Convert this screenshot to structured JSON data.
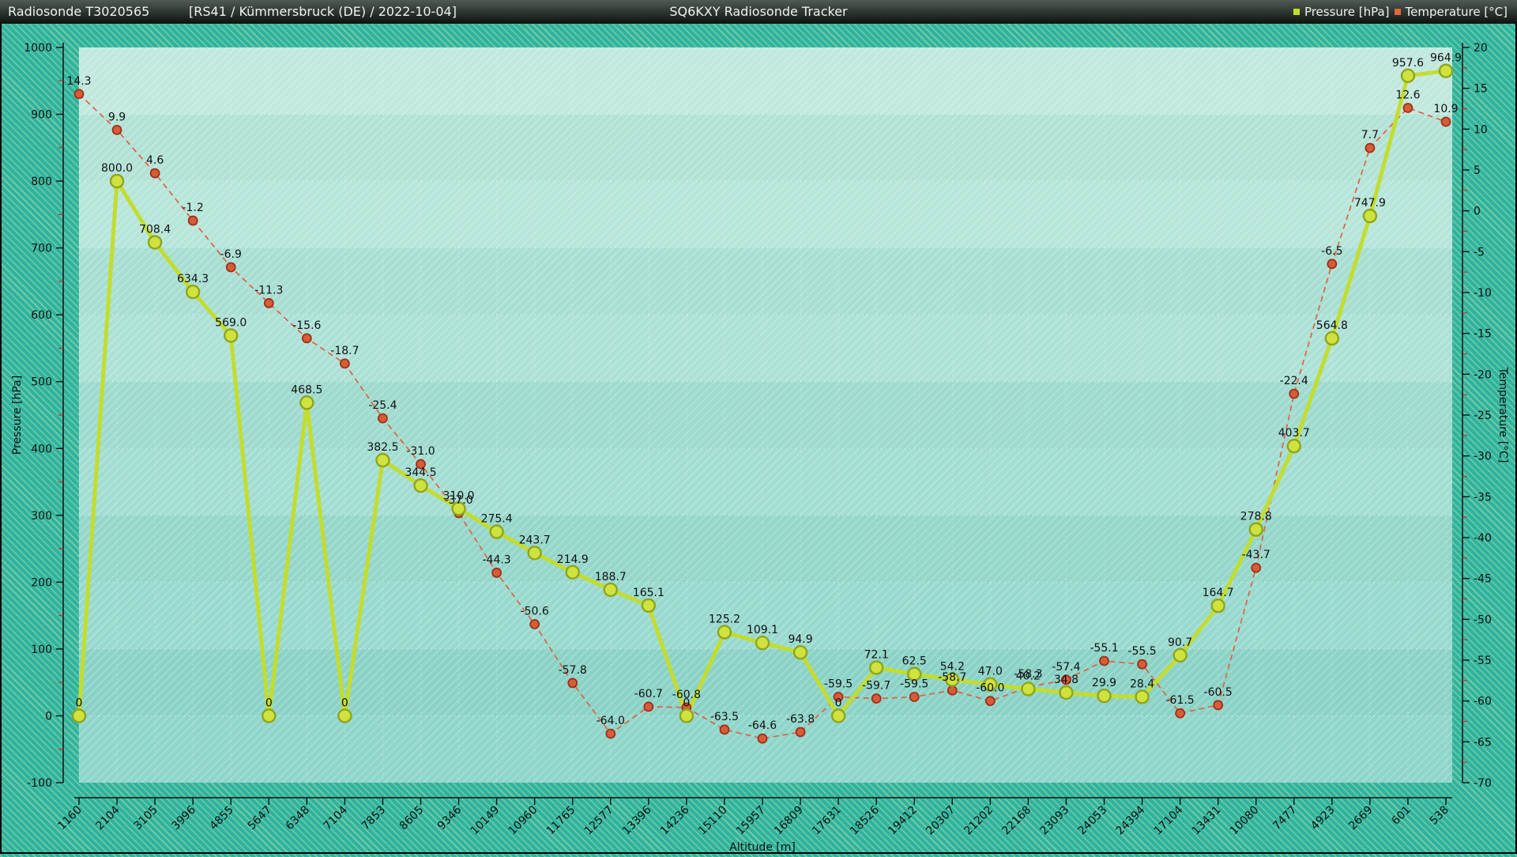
{
  "header": {
    "station_label": "Radiosonde T3020565",
    "flight_info": "[RS41 / Kümmersbruck (DE) / 2022-10-04]",
    "app_title": "SQ6KXY Radiosonde Tracker",
    "legend": [
      {
        "label": "Pressure [hPa]",
        "color": "#c3dd2e"
      },
      {
        "label": "Temperature [°C]",
        "color": "#e0663c"
      }
    ]
  },
  "chart_data": {
    "type": "line",
    "title": "",
    "xlabel": "Altitude [m]",
    "ylabel_left": "Pressure [hPa]",
    "ylabel_right": "Temperature [°C]",
    "ylim_left": [
      -100,
      1000
    ],
    "yticks_left": [
      1000,
      900,
      800,
      700,
      600,
      500,
      400,
      300,
      200,
      100,
      0,
      -100
    ],
    "ylim_right": [
      -70,
      20
    ],
    "yticks_right": [
      20,
      15,
      10,
      5,
      0,
      -5,
      -10,
      -15,
      -20,
      -25,
      -30,
      -35,
      -40,
      -45,
      -50,
      -55,
      -60,
      -65,
      -70
    ],
    "grid": true,
    "legend_position": "top-right",
    "categories": [
      "1160",
      "2104",
      "3105",
      "3996",
      "4855",
      "5647",
      "6348",
      "7104",
      "7853",
      "8605",
      "9346",
      "10149",
      "10960",
      "11765",
      "12577",
      "13396",
      "14236",
      "15110",
      "15957",
      "16809",
      "17631",
      "18526",
      "19412",
      "20307",
      "21202",
      "22168",
      "23093",
      "24053",
      "24394",
      "17104",
      "13431",
      "10080",
      "7477",
      "4923",
      "2669",
      "601",
      "538"
    ],
    "series": [
      {
        "name": "Pressure [hPa]",
        "axis": "left",
        "style": "solid",
        "line_color": "#c3dd2e",
        "marker_fill": "#cfe23e",
        "marker_stroke": "#8fa51d",
        "values": [
          0,
          800.0,
          708.4,
          634.3,
          569.0,
          0,
          468.5,
          0,
          382.5,
          344.5,
          310.0,
          275.4,
          243.7,
          214.9,
          188.7,
          165.1,
          0,
          125.2,
          109.1,
          94.9,
          0,
          72.1,
          62.5,
          54.2,
          47.0,
          40.2,
          34.8,
          29.9,
          28.4,
          90.7,
          164.7,
          278.8,
          403.7,
          564.8,
          747.9,
          957.6,
          964.9
        ]
      },
      {
        "name": "Temperature [°C]",
        "axis": "right",
        "style": "dashed",
        "line_color": "#dd6340",
        "marker_fill": "#d95c38",
        "marker_stroke": "#9c3118",
        "values": [
          14.3,
          9.9,
          4.6,
          -1.2,
          -6.9,
          -11.3,
          -15.6,
          -18.7,
          -25.4,
          -31.0,
          -37.0,
          -44.3,
          -50.6,
          -57.8,
          -64.0,
          -60.7,
          -60.8,
          -63.5,
          -64.6,
          -63.8,
          -59.5,
          -59.7,
          -59.5,
          -58.7,
          -60.0,
          -58.3,
          -57.4,
          -55.1,
          -55.5,
          -61.5,
          -60.5,
          -43.7,
          -22.4,
          -6.5,
          7.7,
          12.6,
          10.9
        ]
      }
    ]
  }
}
